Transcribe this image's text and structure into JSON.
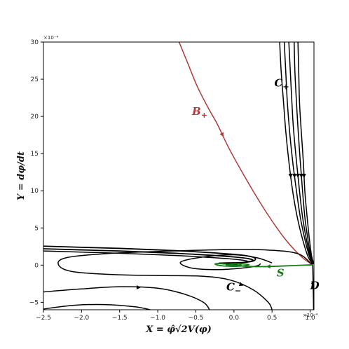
{
  "chart_data": {
    "type": "line",
    "title": "",
    "xlabel": "X = φ̂√2V(φ)",
    "ylabel": "Y = dφ/dt",
    "x_scale_label": "×10⁻⁴",
    "y_scale_label": "×10⁻⁴",
    "xlim": [
      -2.5,
      1.05
    ],
    "ylim": [
      -6,
      30
    ],
    "grid": false,
    "x_ticks": [
      {
        "value": -2.5,
        "label": "−2.5"
      },
      {
        "value": -2.0,
        "label": "−2.0"
      },
      {
        "value": -1.5,
        "label": "−1.5"
      },
      {
        "value": -1.0,
        "label": "−1.0"
      },
      {
        "value": -0.5,
        "label": "−0.5"
      },
      {
        "value": 0.0,
        "label": "0.0"
      },
      {
        "value": 0.5,
        "label": "0.5"
      },
      {
        "value": 1.0,
        "label": "1.0"
      }
    ],
    "y_ticks": [
      {
        "value": -5,
        "label": "−5"
      },
      {
        "value": 0,
        "label": "0"
      },
      {
        "value": 5,
        "label": "5"
      },
      {
        "value": 10,
        "label": "10"
      },
      {
        "value": 15,
        "label": "15"
      },
      {
        "value": 20,
        "label": "20"
      },
      {
        "value": 25,
        "label": "25"
      },
      {
        "value": 30,
        "label": "30"
      }
    ],
    "colors": {
      "black": "#000000",
      "red": "#b03a3a",
      "green": "#1a7a1a"
    },
    "annotations": [
      {
        "id": "B+",
        "text": "B",
        "sub": "+",
        "x": -0.55,
        "y": 20.2,
        "color": "#b03a3a"
      },
      {
        "id": "C+",
        "text": "C",
        "sub": "+",
        "x": 0.53,
        "y": 24.0,
        "color": "#000000"
      },
      {
        "id": "C-",
        "text": "C",
        "sub": "−",
        "x": -0.1,
        "y": -3.4,
        "color": "#000000"
      },
      {
        "id": "S",
        "text": "S",
        "sub": "",
        "x": 0.56,
        "y": -1.5,
        "color": "#1a7a1a"
      },
      {
        "id": "D",
        "text": "D",
        "sub": "",
        "x": 1.0,
        "y": -3.2,
        "color": "#000000"
      }
    ],
    "series": [
      {
        "id": "B+",
        "color": "#b03a3a",
        "width": 1.5,
        "points": [
          [
            -0.72,
            30
          ],
          [
            -0.6,
            27
          ],
          [
            -0.48,
            24
          ],
          [
            -0.33,
            21
          ],
          [
            -0.22,
            19
          ],
          [
            -0.08,
            16
          ],
          [
            0.08,
            13
          ],
          [
            0.25,
            10
          ],
          [
            0.4,
            7.5
          ],
          [
            0.55,
            5.2
          ],
          [
            0.68,
            3.4
          ],
          [
            0.8,
            2.0
          ],
          [
            0.9,
            1.0
          ],
          [
            0.97,
            0.45
          ],
          [
            1.03,
            0.1
          ]
        ],
        "arrows": [
          {
            "at": 4,
            "dir": 1
          }
        ]
      },
      {
        "id": "C+1",
        "color": "#000000",
        "width": 1.5,
        "points": [
          [
            0.6,
            30
          ],
          [
            0.62,
            26
          ],
          [
            0.65,
            22
          ],
          [
            0.68,
            18
          ],
          [
            0.72,
            14
          ],
          [
            0.77,
            10
          ],
          [
            0.83,
            6.5
          ],
          [
            0.9,
            3.5
          ],
          [
            0.97,
            1.2
          ],
          [
            1.03,
            0.15
          ]
        ],
        "arrows": [
          {
            "at": 4,
            "dir": 1
          }
        ]
      },
      {
        "id": "C+2",
        "color": "#000000",
        "width": 1.5,
        "points": [
          [
            0.66,
            30
          ],
          [
            0.68,
            26
          ],
          [
            0.7,
            22
          ],
          [
            0.73,
            18
          ],
          [
            0.77,
            14
          ],
          [
            0.82,
            10
          ],
          [
            0.87,
            6.5
          ],
          [
            0.93,
            3.5
          ],
          [
            0.99,
            1.2
          ],
          [
            1.035,
            0.15
          ]
        ],
        "arrows": [
          {
            "at": 4,
            "dir": 1
          }
        ]
      },
      {
        "id": "C+3",
        "color": "#000000",
        "width": 1.5,
        "points": [
          [
            0.72,
            30
          ],
          [
            0.74,
            26
          ],
          [
            0.76,
            22
          ],
          [
            0.78,
            18.5
          ],
          [
            0.82,
            14
          ],
          [
            0.86,
            10
          ],
          [
            0.9,
            6.5
          ],
          [
            0.95,
            3.5
          ],
          [
            1.0,
            1.2
          ],
          [
            1.04,
            0.15
          ]
        ],
        "arrows": [
          {
            "at": 4,
            "dir": 1
          }
        ]
      },
      {
        "id": "C+4",
        "color": "#000000",
        "width": 1.5,
        "points": [
          [
            0.79,
            30
          ],
          [
            0.8,
            26
          ],
          [
            0.82,
            22
          ],
          [
            0.84,
            18.5
          ],
          [
            0.87,
            14
          ],
          [
            0.9,
            10
          ],
          [
            0.93,
            6.5
          ],
          [
            0.97,
            3.5
          ],
          [
            1.01,
            1.2
          ],
          [
            1.045,
            0.15
          ]
        ],
        "arrows": [
          {
            "at": 4,
            "dir": 1
          }
        ]
      },
      {
        "id": "C+5",
        "color": "#000000",
        "width": 1.5,
        "points": [
          [
            0.84,
            30
          ],
          [
            0.85,
            26
          ],
          [
            0.86,
            22
          ],
          [
            0.88,
            18.5
          ],
          [
            0.91,
            14
          ],
          [
            0.93,
            10
          ],
          [
            0.96,
            6.5
          ],
          [
            0.99,
            3.5
          ],
          [
            1.02,
            1.2
          ],
          [
            1.05,
            0.15
          ]
        ],
        "arrows": [
          {
            "at": 4,
            "dir": 1
          }
        ]
      },
      {
        "id": "spiral-upper",
        "color": "#000000",
        "width": 1.8,
        "points": [
          [
            -2.5,
            2.55
          ],
          [
            -2.0,
            2.4
          ],
          [
            -1.5,
            2.25
          ],
          [
            -1.0,
            2.05
          ],
          [
            -0.5,
            1.8
          ],
          [
            0.0,
            1.45
          ],
          [
            0.2,
            1.2
          ],
          [
            0.28,
            0.9
          ],
          [
            0.25,
            0.55
          ],
          [
            0.1,
            0.35
          ],
          [
            -0.1,
            0.3
          ],
          [
            -0.2,
            0.25
          ],
          [
            -0.1,
            0.15
          ],
          [
            0.05,
            0.1
          ]
        ],
        "arrows": []
      },
      {
        "id": "spiral-upper2",
        "color": "#000000",
        "width": 1.8,
        "points": [
          [
            -2.5,
            2.2
          ],
          [
            -2.0,
            2.05
          ],
          [
            -1.5,
            1.9
          ],
          [
            -1.0,
            1.7
          ],
          [
            -0.5,
            1.45
          ],
          [
            0.0,
            1.1
          ],
          [
            0.2,
            0.85
          ],
          [
            0.25,
            0.6
          ],
          [
            0.15,
            0.4
          ]
        ],
        "arrows": []
      },
      {
        "id": "spiral-upper3",
        "color": "#000000",
        "width": 1.5,
        "points": [
          [
            -2.5,
            1.9
          ],
          [
            -2.0,
            1.75
          ],
          [
            -1.5,
            1.6
          ],
          [
            -1.0,
            1.4
          ],
          [
            -0.5,
            1.15
          ],
          [
            0.0,
            0.8
          ],
          [
            0.15,
            0.6
          ],
          [
            0.2,
            0.45
          ]
        ],
        "arrows": []
      },
      {
        "id": "loop-middle",
        "color": "#000000",
        "width": 1.5,
        "points": [
          [
            0.5,
            0.3
          ],
          [
            0.3,
            1.0
          ],
          [
            0.0,
            1.4
          ],
          [
            -0.4,
            1.1
          ],
          [
            -0.7,
            0.4
          ],
          [
            -0.55,
            -0.4
          ],
          [
            -0.2,
            -0.6
          ],
          [
            0.1,
            -0.4
          ],
          [
            0.3,
            -0.1
          ],
          [
            0.35,
            0.2
          ]
        ],
        "arrows": []
      },
      {
        "id": "C-main",
        "color": "#000000",
        "width": 1.5,
        "points": [
          [
            1.03,
            0.0
          ],
          [
            0.85,
            1.5
          ],
          [
            0.5,
            2.0
          ],
          [
            0.0,
            2.1
          ],
          [
            -0.8,
            1.9
          ],
          [
            -1.6,
            1.6
          ],
          [
            -2.2,
            1.0
          ],
          [
            -2.3,
            0.0
          ],
          [
            -2.1,
            -0.9
          ],
          [
            -1.5,
            -1.3
          ],
          [
            -0.9,
            -1.4
          ],
          [
            -0.4,
            -1.5
          ],
          [
            -0.05,
            -2.0
          ],
          [
            0.25,
            -3.3
          ],
          [
            0.45,
            -5.0
          ],
          [
            0.5,
            -6.0
          ]
        ],
        "arrows": [
          {
            "at": 12,
            "dir": 1
          }
        ]
      },
      {
        "id": "C-lower1",
        "color": "#000000",
        "width": 1.5,
        "points": [
          [
            -2.5,
            -3.6
          ],
          [
            -2.0,
            -3.2
          ],
          [
            -1.5,
            -2.9
          ],
          [
            -1.0,
            -3.1
          ],
          [
            -0.65,
            -3.9
          ],
          [
            -0.4,
            -5.0
          ],
          [
            -0.32,
            -6.0
          ]
        ],
        "arrows": [
          {
            "at": 2,
            "dir": 1
          }
        ]
      },
      {
        "id": "C-lower2",
        "color": "#000000",
        "width": 1.5,
        "points": [
          [
            -2.5,
            -5.9
          ],
          [
            -2.1,
            -5.4
          ],
          [
            -1.7,
            -5.3
          ],
          [
            -1.3,
            -5.6
          ],
          [
            -1.1,
            -6.0
          ]
        ],
        "arrows": []
      },
      {
        "id": "D",
        "color": "#000000",
        "width": 1.5,
        "points": [
          [
            1.045,
            -6.0
          ],
          [
            1.043,
            -4.5
          ],
          [
            1.04,
            -3.0
          ],
          [
            1.037,
            -1.5
          ],
          [
            1.035,
            -0.5
          ],
          [
            1.033,
            0.0
          ]
        ],
        "arrows": [
          {
            "at": 2,
            "dir": 1
          }
        ]
      },
      {
        "id": "S",
        "color": "#1a7a1a",
        "width": 1.8,
        "points": [
          [
            1.04,
            0.05
          ],
          [
            0.8,
            -0.05
          ],
          [
            0.55,
            -0.15
          ],
          [
            0.35,
            -0.2
          ],
          [
            0.15,
            -0.15
          ],
          [
            0.0,
            0.0
          ],
          [
            -0.15,
            0.2
          ],
          [
            -0.25,
            0.15
          ],
          [
            -0.15,
            -0.1
          ],
          [
            0.05,
            -0.15
          ],
          [
            0.2,
            0.05
          ],
          [
            0.05,
            0.2
          ],
          [
            -0.1,
            0.05
          ],
          [
            0.0,
            -0.05
          ],
          [
            0.1,
            0.05
          ]
        ],
        "arrows": [
          {
            "at": 2,
            "dir": 1
          }
        ]
      }
    ]
  }
}
